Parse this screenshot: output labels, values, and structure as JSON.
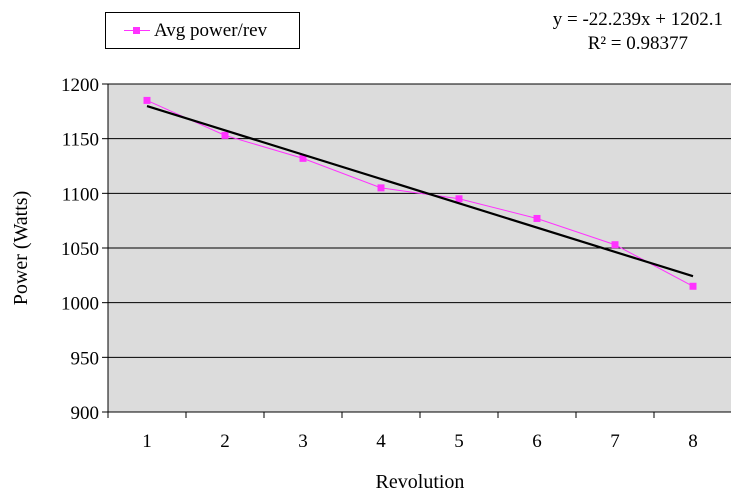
{
  "chart_data": {
    "type": "line",
    "x": [
      1,
      2,
      3,
      4,
      5,
      6,
      7,
      8
    ],
    "series": [
      {
        "name": "Avg power/rev",
        "values": [
          1185,
          1153,
          1132,
          1105,
          1095,
          1077,
          1053,
          1015
        ],
        "color": "#ff33ff",
        "marker": "square"
      }
    ],
    "trendline": {
      "slope": -22.239,
      "intercept": 1202.1,
      "color": "#000000"
    },
    "annotations": [
      "y = -22.239x + 1202.1",
      "R² = 0.98377"
    ],
    "xlabel": "Revolution",
    "ylabel": "Power (Watts)",
    "ylim": [
      900,
      1200
    ],
    "yticks": [
      900,
      950,
      1000,
      1050,
      1100,
      1150,
      1200
    ],
    "xlim": [
      0.5,
      8.5
    ],
    "xticks": [
      1,
      2,
      3,
      4,
      5,
      6,
      7,
      8
    ],
    "grid": "horizontal",
    "plot_background": "#dcdcdc",
    "legend_position": "top-left"
  }
}
